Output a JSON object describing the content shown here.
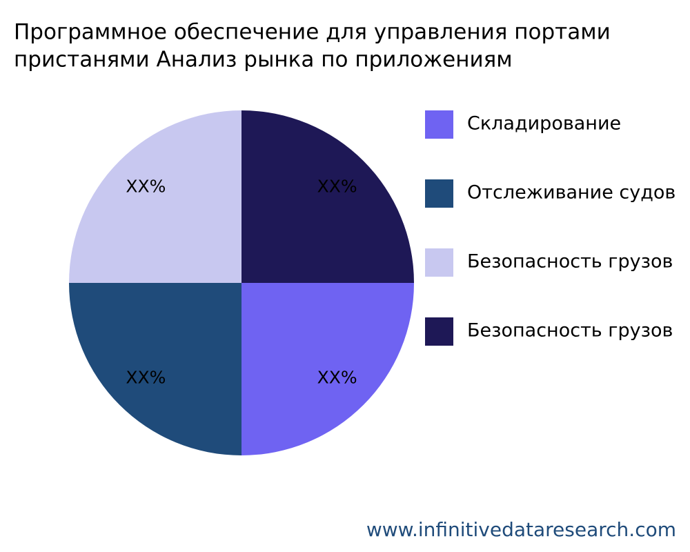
{
  "chart_data": {
    "type": "pie",
    "title": [
      "Программное обеспечение для управления портами",
      "пристанями Анализ рынка по приложениям"
    ],
    "categories": [
      "Складирование",
      "Отслеживание судов",
      "Безопасность грузов",
      "Безопасность грузов"
    ],
    "values": [
      25,
      25,
      25,
      25
    ],
    "value_labels": [
      "XX%",
      "XX%",
      "XX%",
      "XX%"
    ],
    "colors": [
      "#6f63f2",
      "#1f4b7a",
      "#c8c8f0",
      "#1e1856"
    ],
    "legend": "right",
    "watermark": "www.infinitivedataresearch.com"
  }
}
